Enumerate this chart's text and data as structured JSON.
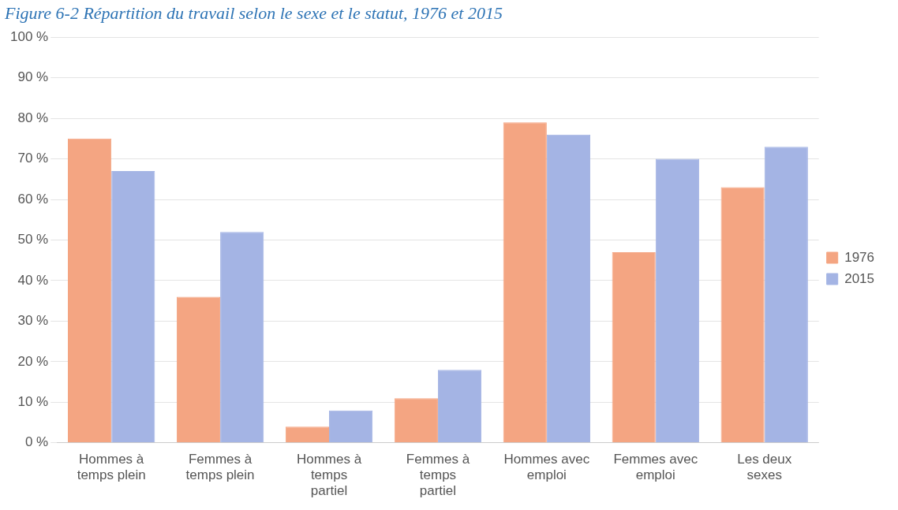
{
  "chart_data": {
    "type": "bar",
    "title": "Figure 6-2 Répartition du travail selon le sexe et le statut, 1976 et 2015",
    "categories": [
      "Hommes à temps plein",
      "Femmes à temps plein",
      "Hommes à temps partiel",
      "Femmes à temps partiel",
      "Hommes avec emploi",
      "Femmes avec emploi",
      "Les deux sexes"
    ],
    "series": [
      {
        "name": "1976",
        "color": "#f4a582",
        "values": [
          75,
          36,
          4,
          11,
          79,
          47,
          63
        ]
      },
      {
        "name": "2015",
        "color": "#a4b4e4",
        "values": [
          67,
          52,
          8,
          18,
          76,
          70,
          73
        ]
      }
    ],
    "ylim": [
      0,
      100
    ],
    "yticks": [
      {
        "value": 0,
        "label": "0 %"
      },
      {
        "value": 10,
        "label": "10 %"
      },
      {
        "value": 20,
        "label": "20 %"
      },
      {
        "value": 30,
        "label": "30 %"
      },
      {
        "value": 40,
        "label": "40 %"
      },
      {
        "value": 50,
        "label": "50 %"
      },
      {
        "value": 60,
        "label": "60 %"
      },
      {
        "value": 70,
        "label": "70 %"
      },
      {
        "value": 80,
        "label": "80 %"
      },
      {
        "value": 90,
        "label": "90 %"
      },
      {
        "value": 100,
        "label": "100 %"
      }
    ],
    "grid": "y",
    "legend": "right"
  }
}
